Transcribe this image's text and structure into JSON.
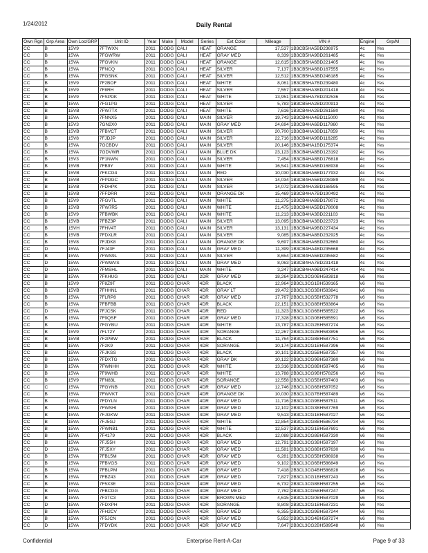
{
  "header": {
    "date": "1/24/2012",
    "title": "Daily Rental"
  },
  "table": {
    "columns": [
      "Own Rgn",
      "Grp Area",
      "Own Loc/GRP",
      "Unit ID",
      "Year",
      "Make",
      "Model",
      "Series",
      "Ext Color",
      "Mileage",
      "VIN #",
      "Engine",
      "Grp/M"
    ],
    "rows": [
      [
        "CC",
        "B",
        "15V9",
        "7FTWXN",
        "2011",
        "DODG",
        "CALI",
        "HEAT",
        "ORANGE",
        "17,537",
        "1B3CB5HA5BD236975",
        "4c",
        "Yes"
      ],
      [
        "CC",
        "B",
        "15VA",
        "7FGWRW",
        "2011",
        "DODG",
        "CALI",
        "HEAT",
        "GRAY MED",
        "8,339",
        "1B3CB5HA9BD261485",
        "4c",
        "Yes"
      ],
      [
        "CC",
        "B",
        "15VA",
        "7FGVKN",
        "2011",
        "DODG",
        "CALI",
        "HEAT",
        "ORANGE",
        "12,615",
        "1B3CB5HA6BD221405",
        "4c",
        "Yes"
      ],
      [
        "CC",
        "B",
        "15VA",
        "7FNCQ",
        "2011",
        "DODG",
        "CALI",
        "HEAT",
        "SILVER",
        "7,137",
        "1B3CB5HA6BD167555",
        "4c",
        "Yes"
      ],
      [
        "CC",
        "B",
        "15VA",
        "7FGSNK",
        "2011",
        "DODG",
        "CALI",
        "HEAT",
        "SILVER",
        "12,512",
        "1B3CB5HA3BD246185",
        "4c",
        "Yes"
      ],
      [
        "CC",
        "B",
        "15V9",
        "7F2BOF",
        "2011",
        "DODG",
        "CALI",
        "HEAT",
        "WHITE",
        "8,061",
        "1B3CB5HA7BD239480",
        "4c",
        "Yes"
      ],
      [
        "CC",
        "B",
        "15V9",
        "7F8RH",
        "2011",
        "DODG",
        "CALI",
        "HEAT",
        "SILVER",
        "7,557",
        "1B3CB5HA3BD201418",
        "4c",
        "Yes"
      ],
      [
        "CC",
        "B",
        "15V9",
        "7FSPDK",
        "2011",
        "DODG",
        "CALI",
        "HEAT",
        "WHITE",
        "13,951",
        "1B3CB5HA7BD232536",
        "4c",
        "Yes"
      ],
      [
        "CC",
        "B",
        "15VA",
        "7FG1PG",
        "2011",
        "DODG",
        "CALI",
        "HEAT",
        "SILVER",
        "5,783",
        "1B3CB5HA2BD200913",
        "4c",
        "Yes"
      ],
      [
        "CC",
        "B",
        "15VB",
        "7FW7TX",
        "2011",
        "DODG",
        "CALI",
        "HEAT",
        "WHITE",
        "7,616",
        "1B3CB4HA2BD261580",
        "4c",
        "Yes"
      ],
      [
        "CC",
        "B",
        "15VA",
        "7FNNX5",
        "2011",
        "DODG",
        "CALI",
        "MAIN",
        "SILVER",
        "19,743",
        "1B3CB4HA4BD115000",
        "4c",
        "Yes"
      ],
      [
        "CC",
        "B",
        "15V3",
        "7GN2X0",
        "2011",
        "DODG",
        "CALI",
        "MAIN",
        "GRAY MED",
        "24,694",
        "1B3CB4HA6BD117860",
        "4c",
        "Yes"
      ],
      [
        "CC",
        "B",
        "15VB",
        "7FBVCT",
        "2011",
        "DODG",
        "CALI",
        "MAIN",
        "SILVER",
        "20,700",
        "1B3CB4HA3BD117859",
        "4c",
        "Yes"
      ],
      [
        "CC",
        "B",
        "15V8",
        "7FJDJP",
        "2011",
        "DODG",
        "CALI",
        "MAIN",
        "SILVER",
        "22,716",
        "1B3CB4HA9BD116285",
        "4c",
        "Yes"
      ],
      [
        "CC",
        "B",
        "15VA",
        "7GCBDV",
        "2011",
        "DODG",
        "CALI",
        "MAIN",
        "SILVER",
        "20,146",
        "1B3CB4HA1BD175374",
        "4c",
        "Yes"
      ],
      [
        "CC",
        "B",
        "15VA",
        "7GDVWR",
        "2011",
        "DODG",
        "CALI",
        "MAIN",
        "BLUE DK",
        "23,123",
        "1B3CB4HA8BD123192",
        "4c",
        "Yes"
      ],
      [
        "CC",
        "B",
        "15V3",
        "7F1NWN",
        "2011",
        "DODG",
        "CALI",
        "MAIN",
        "SILVER",
        "7,454",
        "1B3CB4HA8BD176818",
        "4c",
        "Yes"
      ],
      [
        "CC",
        "B",
        "15VB",
        "7FB9Y",
        "2011",
        "DODG",
        "CALI",
        "MAIN",
        "WHITE",
        "16,541",
        "1B3CB4HA5BD168938",
        "4c",
        "Yes"
      ],
      [
        "CC",
        "B",
        "15VB",
        "7FKCG4",
        "2011",
        "DODG",
        "CALI",
        "MAIN",
        "RED",
        "10,030",
        "1B3CB4HA6BD177932",
        "4c",
        "Yes"
      ],
      [
        "CC",
        "B",
        "15VB",
        "7FPDGC",
        "2011",
        "DODG",
        "CALI",
        "MAIN",
        "SILVER",
        "14,034",
        "1B3CB4HA5BD228389",
        "4c",
        "Yes"
      ],
      [
        "CC",
        "B",
        "15VB",
        "7FDHPK",
        "2011",
        "DODG",
        "CALI",
        "MAIN",
        "SILVER",
        "14,072",
        "1B3CB4HA3BD168595",
        "4c",
        "Yes"
      ],
      [
        "CC",
        "B",
        "15VB",
        "7FFDRR",
        "2011",
        "DODG",
        "CALI",
        "MAIN",
        "ORANGE DK",
        "15,469",
        "1B3CB4HA7BD190492",
        "4c",
        "Yes"
      ],
      [
        "CC",
        "B",
        "15V9",
        "7FGVTL",
        "2011",
        "DODG",
        "CALI",
        "MAIN",
        "WHITE",
        "11,275",
        "1B3CB4HA8BD178072",
        "4c",
        "Yes"
      ],
      [
        "CC",
        "B",
        "15VB",
        "7FW7R5",
        "2011",
        "DODG",
        "CALI",
        "MAIN",
        "WHITE",
        "21,475",
        "1B3CB4HA5BD178008",
        "4c",
        "Yes"
      ],
      [
        "CC",
        "B",
        "15V9",
        "7FBWBK",
        "2011",
        "DODG",
        "CALI",
        "MAIN",
        "WHITE",
        "11,213",
        "1B3CB4HA3BD221103",
        "4c",
        "Yes"
      ],
      [
        "CC",
        "B",
        "15VB",
        "7FBZ3P",
        "2011",
        "DODG",
        "CALI",
        "MAIN",
        "SILVER",
        "13,095",
        "1B3CB4HA3BD223723",
        "4c",
        "Yes"
      ],
      [
        "CC",
        "B",
        "15VH",
        "7FHV4T",
        "2011",
        "DODG",
        "CALI",
        "MAIN",
        "SILVER",
        "13,131",
        "1B3CB4HA9BD227434",
        "4c",
        "Yes"
      ],
      [
        "CC",
        "B",
        "15VB",
        "7FDXLR",
        "2011",
        "DODG",
        "CALI",
        "MAIN",
        "SILVER",
        "9,085",
        "1B3CB4HA8BD232925",
        "4c",
        "Yes"
      ],
      [
        "CC",
        "B",
        "15V8",
        "7FJDK8",
        "2011",
        "DODG",
        "CALI",
        "MAIN",
        "ORANGE DK",
        "9,697",
        "1B3CB4HA6BD232660",
        "4c",
        "Yes"
      ],
      [
        "CC",
        "D",
        "15VA",
        "7FJ43F",
        "2011",
        "DODG",
        "CALI",
        "MAIN",
        "GRAY MED",
        "11,399",
        "1B3CB4HA4BD235668",
        "4c",
        "Yes"
      ],
      [
        "CC",
        "B",
        "15VA",
        "7FWS9L",
        "2011",
        "DODG",
        "CALI",
        "MAIN",
        "SILVER",
        "8,654",
        "1B3CB4HA5BD235582",
        "4c",
        "Yes"
      ],
      [
        "CC",
        "D",
        "15VA",
        "7FWWVS",
        "2011",
        "DODG",
        "CALI",
        "MAIN",
        "GRAY MED",
        "8,063",
        "1B3CB4HA7BD231418",
        "4c",
        "Yes"
      ],
      [
        "CC",
        "D",
        "15VA",
        "7FMSHL",
        "2011",
        "DODG",
        "CALI",
        "MAIN",
        "WHITE",
        "3,247",
        "1B3CB4HA9BD247414",
        "4c",
        "Yes"
      ],
      [
        "CC",
        "B",
        "15VA",
        "7FKHUG",
        "2011",
        "DODG",
        "CALI",
        "2DR",
        "GRAY MED",
        "18,264",
        "2B3CL3CG0BH583818",
        "v6",
        "Yes"
      ],
      [
        "CC",
        "B",
        "15V9",
        "7F8Z9T",
        "2011",
        "DODG",
        "CHAR",
        "4DR",
        "BLACK",
        "12,964",
        "2B3CL3CG1BH539165",
        "v6",
        "Yes"
      ],
      [
        "CC",
        "B",
        "15VB",
        "7FHHN1",
        "2011",
        "DODG",
        "CHAR",
        "4DR",
        "GRAY LT",
        "19,472",
        "2B3CL3CG3BH583841",
        "v6",
        "Yes"
      ],
      [
        "CC",
        "B",
        "15VA",
        "7FLRP8",
        "2011",
        "DODG",
        "CHAR",
        "4DR",
        "GRAY MED",
        "17,767",
        "2B3CL3CG5BH532778",
        "v6",
        "Yes"
      ],
      [
        "CC",
        "B",
        "15VA",
        "7FBFBB",
        "2011",
        "DODG",
        "CHAR",
        "4DR",
        "BLACK",
        "22,151",
        "2B3CL3CG8BH583864",
        "v6",
        "Yes"
      ],
      [
        "CC",
        "D",
        "15VA",
        "7FJCSK",
        "2011",
        "DODG",
        "CHAR",
        "4DR",
        "RED",
        "11,323",
        "2B3CL3CG6BH585522",
        "v6",
        "Yes"
      ],
      [
        "CC",
        "B",
        "15VA",
        "7F9QSF",
        "2011",
        "DODG",
        "CHAR",
        "4DR",
        "GRAY MED",
        "17,328",
        "2B3CL3CG0BH585591",
        "v6",
        "Yes"
      ],
      [
        "CC",
        "B",
        "15VA",
        "7FGYBU",
        "2011",
        "DODG",
        "CHAR",
        "4DR",
        "WHITE",
        "13,787",
        "2B3CL3CG2BH587274",
        "v6",
        "Yes"
      ],
      [
        "CC",
        "B",
        "15V9",
        "7FLT2Y",
        "2011",
        "DODG",
        "CHAR",
        "4DR",
        "SORANGE",
        "12,267",
        "2B3CL3CG2BH583896",
        "v6",
        "Yes"
      ],
      [
        "CC",
        "B",
        "15VB",
        "7F2PBW",
        "2011",
        "DODG",
        "CHAR",
        "4DR",
        "BLACK",
        "11,764",
        "2B3CL3CG8BH587751",
        "v6",
        "Yes"
      ],
      [
        "CC",
        "B",
        "15VA",
        "7F2K9",
        "2011",
        "DODG",
        "CHAR",
        "4DR",
        "SORANGE",
        "10,174",
        "2B3CL3CG1BH587396",
        "v6",
        "Yes"
      ],
      [
        "CC",
        "B",
        "15VA",
        "7FJKSS",
        "2011",
        "DODG",
        "CHAR",
        "4DR",
        "BLACK",
        "10,101",
        "2B3CL3CG5BH587357",
        "v6",
        "Yes"
      ],
      [
        "CC",
        "B",
        "15VA",
        "7FDXTG",
        "2011",
        "DODG",
        "CHAR",
        "4DR",
        "GRAY DK",
        "10,122",
        "2B3CL3CG9BH587380",
        "v6",
        "Yes"
      ],
      [
        "CC",
        "B",
        "15VA",
        "7FWNHH",
        "2011",
        "DODG",
        "CHAR",
        "4DR",
        "WHITE",
        "13,316",
        "2B3CL3CG8BH587405",
        "v6",
        "Yes"
      ],
      [
        "CC",
        "B",
        "15VA",
        "7F9WHB",
        "2011",
        "DODG",
        "CHAR",
        "4DR",
        "WHITE",
        "13,788",
        "2B3CL3CG9BH578256",
        "v6",
        "Yes"
      ],
      [
        "CC",
        "B",
        "15V9",
        "7FN83L",
        "2011",
        "DODG",
        "CHAR",
        "4DR",
        "SORANGE",
        "12,558",
        "2B3CL3CG5BH587403",
        "v6",
        "Yes"
      ],
      [
        "CC",
        "C",
        "15VA",
        "7FGYNB",
        "2011",
        "DODG",
        "CHAR",
        "4DR",
        "GRAY MED",
        "12,746",
        "2B3CL3CG6BH587052",
        "v6",
        "Yes"
      ],
      [
        "CC",
        "B",
        "15VA",
        "7FWVKT",
        "2011",
        "DODG",
        "CHAR",
        "4DR",
        "ORANGE DK",
        "10,030",
        "2B3CL3CG7BH587489",
        "v6",
        "Yes"
      ],
      [
        "CC",
        "B",
        "15VA",
        "7FDYLN",
        "2011",
        "DODG",
        "CHAR",
        "4DR",
        "GRAY MED",
        "11,716",
        "2B3CL3CG9BH587511",
        "v6",
        "Yes"
      ],
      [
        "CC",
        "B",
        "15VA",
        "7FWSHI",
        "2011",
        "DODG",
        "CHAR",
        "4DR",
        "GRAY MED",
        "12,102",
        "2B3CL3CG3BH587769",
        "v6",
        "Yes"
      ],
      [
        "CC",
        "B",
        "15VA",
        "7FJGKW",
        "2011",
        "DODG",
        "CHAR",
        "4DR",
        "GRAY MED",
        "9,513",
        "2B3CL3CG1BH587027",
        "v6",
        "Yes"
      ],
      [
        "CC",
        "B",
        "15VA",
        "7FJ5GJ",
        "2011",
        "DODG",
        "CHAR",
        "4DR",
        "WHITE",
        "12,854",
        "2B3CL3CG8BH586734",
        "v6",
        "Yes"
      ],
      [
        "CC",
        "B",
        "15VA",
        "7FWNB1",
        "2011",
        "DODG",
        "CHAR",
        "4DR",
        "WHITE",
        "12,537",
        "2B3CL3CG1BH587691",
        "v6",
        "Yes"
      ],
      [
        "CC",
        "B",
        "15VA",
        "7F4179",
        "2011",
        "DODG",
        "CHAR",
        "4DR",
        "BLACK",
        "12,088",
        "2B3CL3CG8BH587330",
        "v6",
        "Yes"
      ],
      [
        "CC",
        "B",
        "15VA",
        "7FJ55H",
        "2011",
        "DODG",
        "CHAR",
        "4DR",
        "GRAY MED",
        "12,791",
        "2B3CL3CG3BH587197",
        "v6",
        "Yes"
      ],
      [
        "CC",
        "D",
        "15VA",
        "7FJ5XY",
        "2011",
        "DODG",
        "CHAR",
        "4DR",
        "GRAY MED",
        "11,581",
        "2B3CL3CG8BH587630",
        "v6",
        "Yes"
      ],
      [
        "CC",
        "B",
        "15VA",
        "7FB15M",
        "2011",
        "DODG",
        "CHAR",
        "4DR",
        "GRAY MED",
        "6,281",
        "2B3CL3CG5BH586938",
        "v6",
        "Yes"
      ],
      [
        "CC",
        "B",
        "15VA",
        "7FBVGS",
        "2011",
        "DODG",
        "CHAR",
        "4DR",
        "GRAY MED",
        "9,102",
        "2B3CL3CG6BH586849",
        "v6",
        "Yes"
      ],
      [
        "CC",
        "B",
        "15VA",
        "7FBLPM",
        "2011",
        "DODG",
        "CHAR",
        "4DR",
        "GRAY MED",
        "7,418",
        "2B3CL3CG4BH586828",
        "v6",
        "Yes"
      ],
      [
        "CC",
        "B",
        "15VA",
        "7FBZ43",
        "2011",
        "DODG",
        "CHAR",
        "4DR",
        "GRAY MED",
        "7,827",
        "2B3CL3CG1BH587243",
        "v6",
        "Yes"
      ],
      [
        "CC",
        "B",
        "15VA",
        "7F5X3E",
        "2011",
        "DODG",
        "CHAR",
        "4DR",
        "GRAY MED",
        "6,732",
        "2B3CL3CG8BH587255",
        "v6",
        "Yes"
      ],
      [
        "CC",
        "B",
        "15VA",
        "7FBCGG",
        "2011",
        "DODG",
        "CHAR",
        "4DR",
        "GRAY MED",
        "7,762",
        "2B3CL3CG5BH587247",
        "v6",
        "Yes"
      ],
      [
        "CC",
        "B",
        "15VA",
        "7F3TC3",
        "2011",
        "DODG",
        "CHAR",
        "4DR",
        "BROWN MED",
        "4,615",
        "2B3CL3CG0BH587029",
        "v6",
        "Yes"
      ],
      [
        "CC",
        "D",
        "15VA",
        "7FDXPH",
        "2011",
        "DODG",
        "CHAR",
        "4DR",
        "SORANGE",
        "8,808",
        "2B3CL3CG1BH587231",
        "v6",
        "Yes"
      ],
      [
        "CC",
        "B",
        "15VA",
        "7FH2CV",
        "2011",
        "DODG",
        "CHAR",
        "4DR",
        "GRAY MED",
        "6,355",
        "2B3CL3CG9BH587244",
        "v6",
        "Yes"
      ],
      [
        "CC",
        "B",
        "15VA",
        "7F5JCN",
        "2011",
        "DODG",
        "CHAR",
        "4DR",
        "GRAY MED",
        "5,852",
        "2B3CL3CG4BH587274",
        "v6",
        "Yes"
      ],
      [
        "CC",
        "D",
        "15VA",
        "7FDYDK",
        "2011",
        "DODG",
        "CHAR",
        "4DR",
        "GRAY MED",
        "7,647",
        "2B3CL3CG2BH589548",
        "v6",
        "Yes"
      ]
    ]
  },
  "footer": {
    "left": "Confidential",
    "center": "Enterprise Rent-A-Car",
    "right": "Page 9 of 33"
  }
}
